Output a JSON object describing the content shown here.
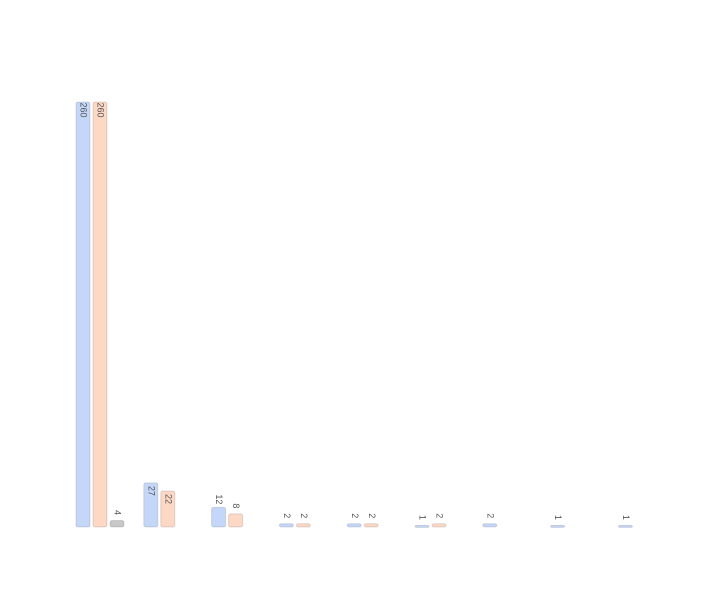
{
  "chart_data": {
    "type": "bar",
    "categories": [
      null,
      null,
      null,
      null,
      null,
      null,
      null,
      null,
      null
    ],
    "series": [
      {
        "color": "#c5d7f9",
        "values": [
          260,
          27,
          12,
          2,
          2,
          1,
          2,
          1,
          1
        ]
      },
      {
        "color": "#fcd8c5",
        "values": [
          260,
          22,
          8,
          2,
          2,
          2,
          null,
          null,
          null
        ]
      },
      {
        "color": "#c8c8c8",
        "values": [
          4,
          null,
          null,
          null,
          null,
          null,
          null,
          null,
          null
        ]
      }
    ],
    "ylim": [
      0,
      260
    ]
  }
}
